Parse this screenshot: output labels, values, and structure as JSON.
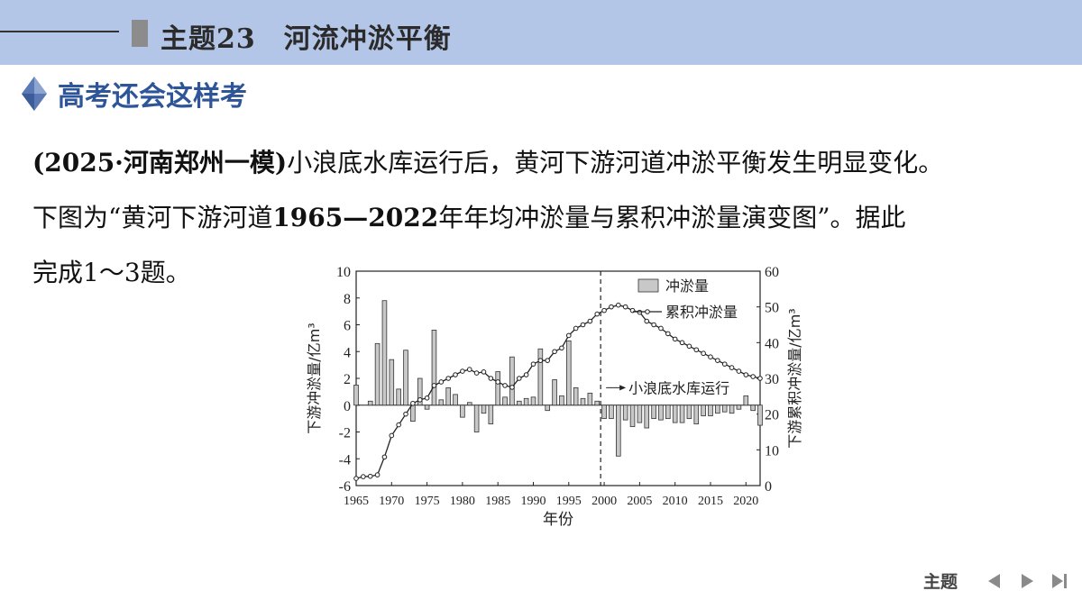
{
  "header": {
    "title": "主题23　河流冲淤平衡"
  },
  "section": {
    "label": "高考还会这样考"
  },
  "question": {
    "line1_source": "(2025·河南郑州一模)",
    "line1_text": "小浪底水库运行后，黄河下游河道冲淤平衡发生明显变化。",
    "line2_a": "下图为“黄河下游河道",
    "line2_years": "1965—2022",
    "line2_b": "年年均冲淤量与累积冲淤量演变图”。据此",
    "line3": "完成1～3题。"
  },
  "chart_data": {
    "type": "bar+line",
    "xlabel": "年份",
    "ylabel_left": "下游冲淤量/亿m³",
    "ylabel_right": "下游累积冲淤量/亿m³",
    "ylim_left": [
      -6,
      10
    ],
    "ylim_right": [
      0,
      60
    ],
    "xlim": [
      1965,
      2022
    ],
    "x_ticks": [
      1965,
      1970,
      1975,
      1980,
      1985,
      1990,
      1995,
      2000,
      2005,
      2010,
      2015,
      2020
    ],
    "y_ticks_left": [
      -6,
      -4,
      -2,
      0,
      2,
      4,
      6,
      8,
      10
    ],
    "y_ticks_right": [
      0,
      10,
      20,
      30,
      40,
      50,
      60
    ],
    "legend": [
      "冲淤量",
      "累积冲淤量"
    ],
    "legend_position": "top-right",
    "annotation": "小浪底水库运行",
    "annotation_year": 1999.5,
    "years": [
      1965,
      1966,
      1967,
      1968,
      1969,
      1970,
      1971,
      1972,
      1973,
      1974,
      1975,
      1976,
      1977,
      1978,
      1979,
      1980,
      1981,
      1982,
      1983,
      1984,
      1985,
      1986,
      1987,
      1988,
      1989,
      1990,
      1991,
      1992,
      1993,
      1994,
      1995,
      1996,
      1997,
      1998,
      1999,
      2000,
      2001,
      2002,
      2003,
      2004,
      2005,
      2006,
      2007,
      2008,
      2009,
      2010,
      2011,
      2012,
      2013,
      2014,
      2015,
      2016,
      2017,
      2018,
      2019,
      2020,
      2021,
      2022
    ],
    "series": [
      {
        "name": "冲淤量",
        "type": "bar",
        "values": [
          1.5,
          0,
          0.3,
          4.6,
          7.8,
          3.4,
          1.2,
          4.1,
          -1.2,
          2.0,
          -0.3,
          5.6,
          0.4,
          1.3,
          0.8,
          -0.9,
          0.2,
          -2.0,
          -0.6,
          -1.4,
          2.5,
          0.6,
          3.6,
          0.3,
          0.5,
          0.6,
          4.2,
          -0.4,
          1.9,
          0.7,
          4.8,
          1.3,
          0.5,
          0.9,
          0.3,
          -1.0,
          -1.0,
          -3.8,
          -1.1,
          -1.6,
          -1.3,
          -1.7,
          -1.0,
          -1.1,
          -1.0,
          -1.3,
          -1.3,
          -1.0,
          -1.4,
          -0.8,
          -0.8,
          -0.6,
          -0.5,
          -0.6,
          -0.3,
          0.7,
          -0.4,
          -1.5
        ]
      },
      {
        "name": "累积冲淤量",
        "type": "line",
        "values": [
          2,
          2.5,
          2.6,
          3,
          8,
          14,
          17,
          20,
          23,
          24,
          24.5,
          28,
          29,
          30,
          31,
          32,
          32.5,
          31.5,
          31.8,
          30,
          29,
          28,
          27.5,
          30,
          31,
          34,
          35,
          35,
          37.5,
          38.5,
          42,
          44,
          45,
          46,
          48,
          49,
          50,
          50.5,
          50,
          49,
          48.5,
          46,
          45,
          44,
          42.5,
          41,
          40,
          39,
          38,
          37,
          36,
          35,
          34,
          33,
          32,
          31,
          30.5,
          30
        ]
      }
    ]
  },
  "nav": {
    "topic": "主题"
  }
}
